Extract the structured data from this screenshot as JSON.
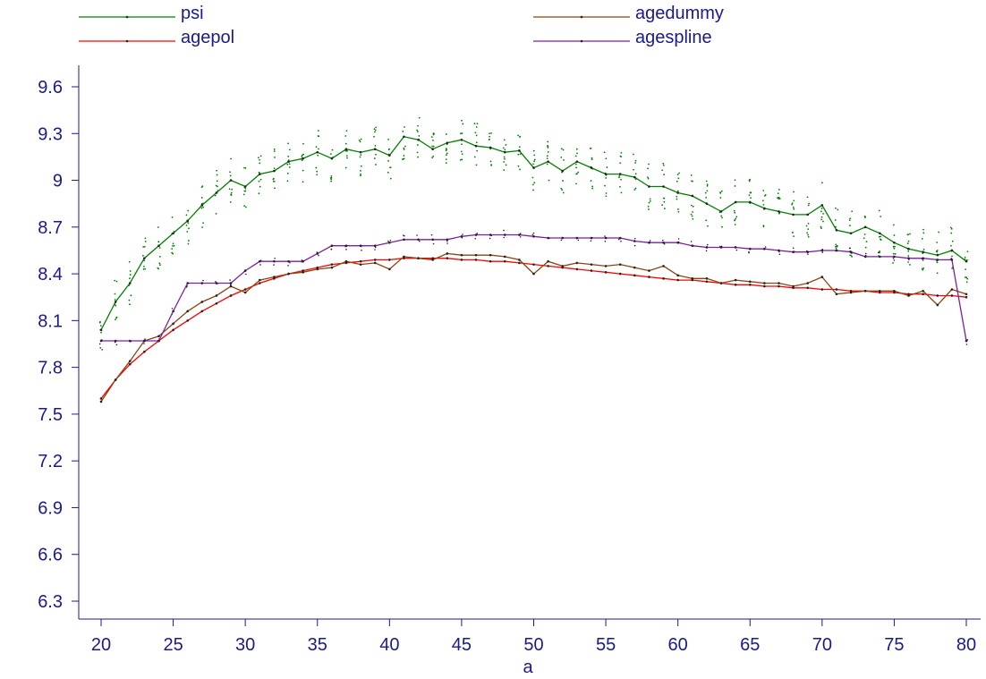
{
  "chart_data": {
    "type": "line",
    "title": "",
    "xlabel": "a",
    "ylabel": "",
    "xlim": [
      20,
      80
    ],
    "ylim": [
      6.3,
      9.6
    ],
    "x_ticks": [
      "20",
      "25",
      "30",
      "35",
      "40",
      "45",
      "50",
      "55",
      "60",
      "65",
      "70",
      "75",
      "80"
    ],
    "y_ticks": [
      "6.3",
      "6.6",
      "6.9",
      "7.2",
      "7.5",
      "7.8",
      "8.1",
      "8.4",
      "8.7",
      "9",
      "9.3",
      "9.6"
    ],
    "legend_position": "top",
    "x": [
      20,
      21,
      22,
      23,
      24,
      25,
      26,
      27,
      28,
      29,
      30,
      31,
      32,
      33,
      34,
      35,
      36,
      37,
      38,
      39,
      40,
      41,
      42,
      43,
      44,
      45,
      46,
      47,
      48,
      49,
      50,
      51,
      52,
      53,
      54,
      55,
      56,
      57,
      58,
      59,
      60,
      61,
      62,
      63,
      64,
      65,
      66,
      67,
      68,
      69,
      70,
      71,
      72,
      73,
      74,
      75,
      76,
      77,
      78,
      79,
      80
    ],
    "series": [
      {
        "name": "psi",
        "color": "#008000",
        "values": [
          8.04,
          8.22,
          8.34,
          8.5,
          8.58,
          8.66,
          8.74,
          8.84,
          8.92,
          9.0,
          8.96,
          9.04,
          9.06,
          9.12,
          9.14,
          9.18,
          9.14,
          9.2,
          9.18,
          9.2,
          9.16,
          9.28,
          9.26,
          9.2,
          9.24,
          9.26,
          9.22,
          9.21,
          9.18,
          9.19,
          9.08,
          9.12,
          9.06,
          9.12,
          9.08,
          9.04,
          9.04,
          9.02,
          8.96,
          8.96,
          8.92,
          8.9,
          8.85,
          8.8,
          8.86,
          8.86,
          8.82,
          8.8,
          8.78,
          8.78,
          8.84,
          8.68,
          8.66,
          8.7,
          8.66,
          8.6,
          8.56,
          8.54,
          8.52,
          8.55,
          8.48
        ]
      },
      {
        "name": "agepol",
        "color": "#ff0000",
        "values": [
          7.6,
          7.72,
          7.82,
          7.9,
          7.97,
          8.04,
          8.1,
          8.16,
          8.21,
          8.26,
          8.3,
          8.34,
          8.37,
          8.4,
          8.42,
          8.44,
          8.46,
          8.47,
          8.48,
          8.49,
          8.49,
          8.5,
          8.5,
          8.5,
          8.5,
          8.49,
          8.49,
          8.48,
          8.48,
          8.47,
          8.46,
          8.45,
          8.44,
          8.43,
          8.42,
          8.41,
          8.4,
          8.39,
          8.38,
          8.37,
          8.36,
          8.36,
          8.35,
          8.34,
          8.33,
          8.33,
          8.32,
          8.32,
          8.31,
          8.31,
          8.3,
          8.3,
          8.29,
          8.29,
          8.28,
          8.28,
          8.27,
          8.27,
          8.26,
          8.26,
          8.25
        ]
      },
      {
        "name": "agedummy",
        "color": "#8b4513",
        "values": [
          7.58,
          7.72,
          7.84,
          7.97,
          8.0,
          8.08,
          8.16,
          8.22,
          8.26,
          8.32,
          8.28,
          8.36,
          8.38,
          8.4,
          8.41,
          8.43,
          8.44,
          8.48,
          8.46,
          8.47,
          8.43,
          8.51,
          8.5,
          8.49,
          8.53,
          8.52,
          8.52,
          8.52,
          8.51,
          8.49,
          8.4,
          8.48,
          8.45,
          8.47,
          8.46,
          8.45,
          8.46,
          8.44,
          8.42,
          8.45,
          8.39,
          8.37,
          8.37,
          8.34,
          8.36,
          8.35,
          8.34,
          8.34,
          8.32,
          8.34,
          8.38,
          8.27,
          8.28,
          8.29,
          8.29,
          8.29,
          8.26,
          8.29,
          8.2,
          8.3,
          8.27
        ]
      },
      {
        "name": "agespline",
        "color": "#7b1fa2",
        "values": [
          7.97,
          7.97,
          7.97,
          7.97,
          7.97,
          8.16,
          8.34,
          8.34,
          8.34,
          8.34,
          8.42,
          8.48,
          8.48,
          8.48,
          8.48,
          8.53,
          8.58,
          8.58,
          8.58,
          8.58,
          8.6,
          8.62,
          8.62,
          8.62,
          8.62,
          8.64,
          8.65,
          8.65,
          8.65,
          8.65,
          8.64,
          8.63,
          8.63,
          8.63,
          8.63,
          8.63,
          8.63,
          8.61,
          8.6,
          8.6,
          8.6,
          8.58,
          8.57,
          8.57,
          8.57,
          8.56,
          8.56,
          8.55,
          8.54,
          8.54,
          8.55,
          8.55,
          8.54,
          8.51,
          8.51,
          8.51,
          8.5,
          8.5,
          8.49,
          8.49,
          7.97
        ]
      }
    ]
  }
}
